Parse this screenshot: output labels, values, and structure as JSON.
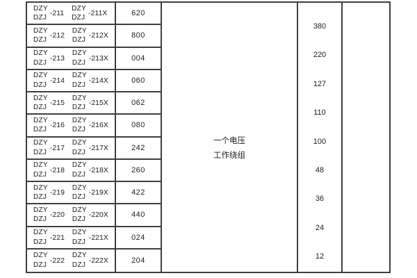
{
  "table": {
    "rows": [
      {
        "left": {
          "top": "DZY",
          "bottom": "DZJ",
          "suffix": "-211"
        },
        "right": {
          "top": "DZY",
          "bottom": "DZJ",
          "suffix": "-211X"
        },
        "code": "620"
      },
      {
        "left": {
          "top": "DZY",
          "bottom": "DZJ",
          "suffix": "-212"
        },
        "right": {
          "top": "DZY",
          "bottom": "DZJ",
          "suffix": "-212X"
        },
        "code": "800"
      },
      {
        "left": {
          "top": "DZY",
          "bottom": "DZJ",
          "suffix": "-213"
        },
        "right": {
          "top": "DZY",
          "bottom": "DZJ",
          "suffix": "-213X"
        },
        "code": "004"
      },
      {
        "left": {
          "top": "DZY",
          "bottom": "DZJ",
          "suffix": "-214"
        },
        "right": {
          "top": "DZY",
          "bottom": "DZJ",
          "suffix": "-214X"
        },
        "code": "060"
      },
      {
        "left": {
          "top": "DZY",
          "bottom": "DZJ",
          "suffix": "-215"
        },
        "right": {
          "top": "DZY",
          "bottom": "DZJ",
          "suffix": "-215X"
        },
        "code": "062"
      },
      {
        "left": {
          "top": "DZY",
          "bottom": "DZJ",
          "suffix": "-216"
        },
        "right": {
          "top": "DZY",
          "bottom": "DZJ",
          "suffix": "-216X"
        },
        "code": "080"
      },
      {
        "left": {
          "top": "DZY",
          "bottom": "DZJ",
          "suffix": "-217"
        },
        "right": {
          "top": "DZY",
          "bottom": "DZJ",
          "suffix": "-217X"
        },
        "code": "242"
      },
      {
        "left": {
          "top": "DZY",
          "bottom": "DZJ",
          "suffix": "-218"
        },
        "right": {
          "top": "DZY",
          "bottom": "DZJ",
          "suffix": "-218X"
        },
        "code": "260"
      },
      {
        "left": {
          "top": "DZY",
          "bottom": "DZJ",
          "suffix": "-219"
        },
        "right": {
          "top": "DZY",
          "bottom": "DZJ",
          "suffix": "-219X"
        },
        "code": "422"
      },
      {
        "left": {
          "top": "DZY",
          "bottom": "DZJ",
          "suffix": "-220"
        },
        "right": {
          "top": "DZY",
          "bottom": "DZJ",
          "suffix": "-220X"
        },
        "code": "440"
      },
      {
        "left": {
          "top": "DZY",
          "bottom": "DZJ",
          "suffix": "-221"
        },
        "right": {
          "top": "DZY",
          "bottom": "DZJ",
          "suffix": "-221X"
        },
        "code": "024"
      },
      {
        "left": {
          "top": "DZY",
          "bottom": "DZJ",
          "suffix": "-222"
        },
        "right": {
          "top": "DZY",
          "bottom": "DZJ",
          "suffix": "-222X"
        },
        "code": "204"
      }
    ],
    "note": {
      "line1": "一个电压",
      "line2": "工作绕组"
    },
    "voltages": [
      "380",
      "220",
      "127",
      "110",
      "100",
      "48",
      "36",
      "24",
      "12"
    ]
  },
  "colors": {
    "border": "#3e3e3e",
    "text": "#1c1c1c",
    "background": "#ffffff"
  }
}
